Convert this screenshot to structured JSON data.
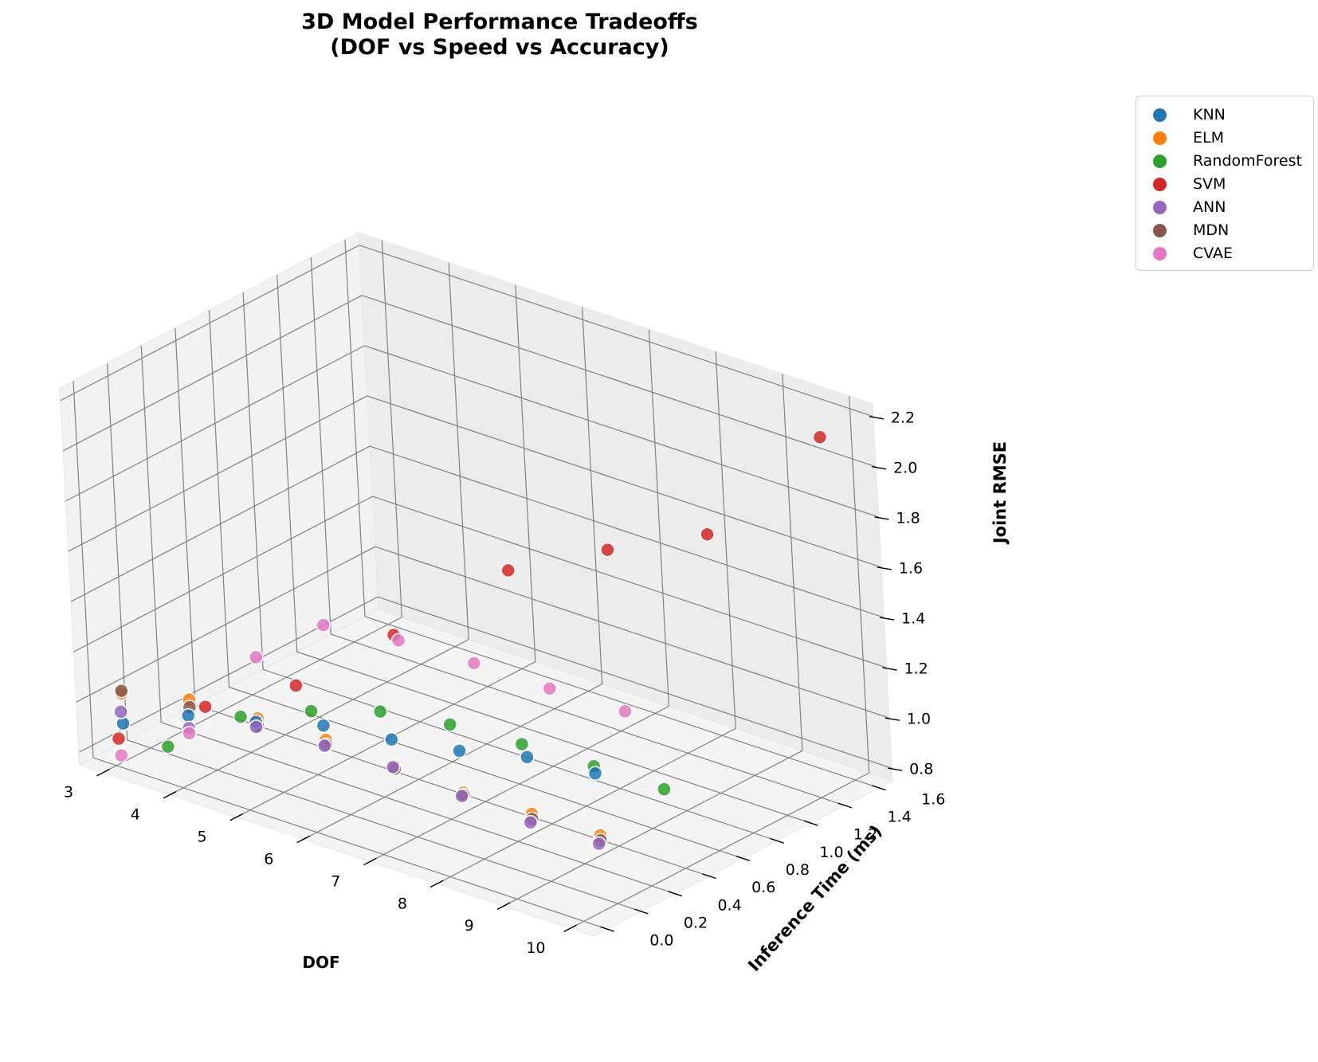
{
  "chart_data": {
    "type": "scatter",
    "title": "3D Model Performance Tradeoffs\n(DOF vs Speed vs Accuracy)",
    "title_lines": [
      "3D Model Performance Tradeoffs",
      "(DOF vs Speed vs Accuracy)"
    ],
    "xlabel": "DOF",
    "ylabel": "Inference Time (ms)",
    "zlabel": "Joint RMSE",
    "xlim": [
      2.65,
      10.35
    ],
    "ylim": [
      -0.08,
      1.68
    ],
    "zlim": [
      0.75,
      2.25
    ],
    "xticks": [
      "3",
      "4",
      "5",
      "6",
      "7",
      "8",
      "9",
      "10"
    ],
    "yticks": [
      "0.0",
      "0.2",
      "0.4",
      "0.6",
      "0.8",
      "1.0",
      "1.2",
      "1.4",
      "1.6"
    ],
    "zticks": [
      "0.8",
      "1.0",
      "1.2",
      "1.4",
      "1.6",
      "1.8",
      "2.0",
      "2.2"
    ],
    "grid": true,
    "legend_position": "upper right, outside plot",
    "series": [
      {
        "name": "KNN",
        "color": "#1f77b4",
        "points": [
          [
            3,
            0.05,
            0.9
          ],
          [
            4,
            0.05,
            1.02
          ],
          [
            5,
            0.06,
            1.08
          ],
          [
            6,
            0.07,
            1.15
          ],
          [
            7,
            0.08,
            1.18
          ],
          [
            8,
            0.09,
            1.22
          ],
          [
            9,
            0.1,
            1.28
          ],
          [
            10,
            0.11,
            1.3
          ]
        ]
      },
      {
        "name": "ELM",
        "color": "#ff7f0e",
        "points": [
          [
            3,
            0.05,
            1.02
          ],
          [
            4,
            0.06,
            1.08
          ],
          [
            5,
            0.07,
            1.09
          ],
          [
            6,
            0.08,
            1.09
          ],
          [
            7,
            0.09,
            1.07
          ],
          [
            8,
            0.1,
            1.05
          ],
          [
            9,
            0.11,
            1.05
          ],
          [
            10,
            0.12,
            1.05
          ]
        ]
      },
      {
        "name": "RandomForest",
        "color": "#2ca02c",
        "points": [
          [
            3,
            0.3,
            0.72
          ],
          [
            4,
            0.35,
            0.91
          ],
          [
            5,
            0.38,
            1.01
          ],
          [
            6,
            0.4,
            1.09
          ],
          [
            7,
            0.42,
            1.12
          ],
          [
            8,
            0.45,
            1.12
          ],
          [
            9,
            0.48,
            1.11
          ],
          [
            10,
            0.5,
            1.1
          ]
        ]
      },
      {
        "name": "SVM",
        "color": "#d62728",
        "points": [
          [
            3,
            0.02,
            0.85
          ],
          [
            4,
            0.15,
            1.02
          ],
          [
            5,
            0.3,
            1.14
          ],
          [
            6,
            0.5,
            1.36
          ],
          [
            7,
            0.8,
            1.6
          ],
          [
            8,
            1.0,
            1.7
          ],
          [
            9,
            1.2,
            1.78
          ],
          [
            10,
            1.5,
            2.15
          ]
        ]
      },
      {
        "name": "ANN",
        "color": "#9467bd",
        "points": [
          [
            3,
            0.04,
            0.95
          ],
          [
            4,
            0.05,
            0.97
          ],
          [
            5,
            0.06,
            1.06
          ],
          [
            6,
            0.07,
            1.07
          ],
          [
            7,
            0.08,
            1.07
          ],
          [
            8,
            0.09,
            1.04
          ],
          [
            9,
            0.1,
            1.02
          ],
          [
            10,
            0.11,
            1.02
          ]
        ]
      },
      {
        "name": "MDN",
        "color": "#8c564b",
        "points": [
          [
            3,
            0.05,
            1.03
          ],
          [
            4,
            0.06,
            1.05
          ],
          [
            5,
            0.07,
            1.06
          ],
          [
            6,
            0.08,
            1.07
          ],
          [
            7,
            0.09,
            1.06
          ],
          [
            8,
            0.1,
            1.04
          ],
          [
            9,
            0.11,
            1.03
          ],
          [
            10,
            0.12,
            1.03
          ]
        ]
      },
      {
        "name": "CVAE",
        "color": "#e377c2",
        "points": [
          [
            3,
            0.03,
            0.78
          ],
          [
            4,
            0.05,
            0.95
          ],
          [
            5,
            0.08,
            1.33
          ],
          [
            6,
            0.1,
            1.54
          ],
          [
            7,
            0.15,
            1.55
          ],
          [
            8,
            0.2,
            1.53
          ],
          [
            9,
            0.25,
            1.5
          ],
          [
            10,
            0.3,
            1.48
          ]
        ]
      }
    ]
  }
}
